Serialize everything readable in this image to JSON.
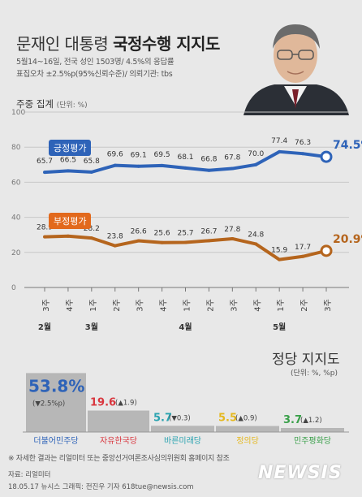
{
  "header": {
    "title_part1": "문재인 대통령",
    "title_part2": "국정수행 지지도",
    "survey_line1": "5월14~16일, 전국 성인 1503명/ 4.5%의 응답률",
    "survey_line2": "표집오차 ±2.5%p(95%신뢰수준)/ 의뢰기관: tbs"
  },
  "weekly_label": "주중 집계",
  "weekly_unit": "(단위: %)",
  "chart_data": [
    {
      "type": "line",
      "categories": [
        "3주",
        "4주",
        "1주",
        "2주",
        "3주",
        "4주",
        "1주",
        "2주",
        "3주",
        "4주",
        "1주",
        "2주",
        "3주"
      ],
      "month_labels": [
        {
          "index": 0,
          "label": "2월"
        },
        {
          "index": 2,
          "label": "3월"
        },
        {
          "index": 6,
          "label": "4월"
        },
        {
          "index": 10,
          "label": "5월"
        }
      ],
      "ylim": [
        0,
        100
      ],
      "yticks": [
        0,
        20,
        40,
        60,
        80,
        100
      ],
      "grid": true,
      "series": [
        {
          "name": "긍정평가",
          "color": "#2e63b8",
          "values": [
            65.7,
            66.5,
            65.8,
            69.6,
            69.1,
            69.5,
            68.1,
            66.8,
            67.8,
            70.0,
            77.4,
            76.3,
            74.5
          ],
          "labels": [
            "65.7",
            "66.5",
            "65.8",
            "69.6",
            "69.1",
            "69.5",
            "68.1",
            "66.8",
            "67.8",
            "70.0",
            "77.4",
            "76.3",
            "74.5%"
          ]
        },
        {
          "name": "부정평가",
          "color": "#b5651d",
          "values": [
            28.9,
            29.3,
            28.2,
            23.8,
            26.6,
            25.6,
            25.7,
            26.7,
            27.8,
            24.8,
            15.9,
            17.7,
            20.9
          ],
          "labels": [
            "28.9",
            "29.3",
            "28.2",
            "23.8",
            "26.6",
            "25.6",
            "25.7",
            "26.7",
            "27.8",
            "24.8",
            "15.9",
            "17.7",
            "20.9%"
          ]
        }
      ]
    },
    {
      "type": "bar",
      "title": "정당 지지도",
      "unit": "(단위: %, %p)",
      "categories": [
        "더불어민주당",
        "자유한국당",
        "바른미래당",
        "정의당",
        "민주평화당"
      ],
      "values": [
        53.8,
        19.6,
        5.7,
        5.5,
        3.7
      ],
      "value_labels": [
        "53.8%",
        "19.6",
        "5.7",
        "5.5",
        "3.7"
      ],
      "changes": [
        "(▼2.5%p)",
        "(▲1.9)",
        "(▼0.3)",
        "(▲0.9)",
        "(▲1.2)"
      ],
      "colors": [
        "#2e63b8",
        "#d9363e",
        "#2aa3b0",
        "#e5b81e",
        "#3aa04a"
      ]
    }
  ],
  "footnote": "※ 자세한 결과는 리얼미터 또는 중앙선거여론조사심의위원회 홈페이지 참조",
  "source": "자료: 리얼미터",
  "credit": "18.05.17 뉴시스 그래픽: 전진우 기자  618tue@newsis.com",
  "logo": "NEWSIS"
}
